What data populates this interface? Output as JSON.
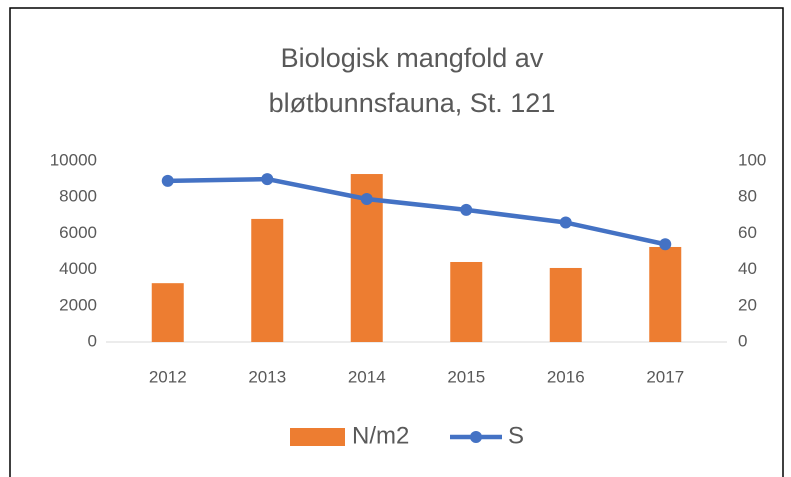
{
  "chart_data": {
    "type": "bar+line",
    "title": [
      "Biologisk mangfold av",
      "bløtbunnsfauna, St. 121"
    ],
    "categories": [
      "2012",
      "2013",
      "2014",
      "2015",
      "2016",
      "2017"
    ],
    "series": [
      {
        "name": "N/m2",
        "color": "#ED7D31",
        "type": "bar",
        "axis": "y",
        "values": [
          3250,
          6800,
          9280,
          4420,
          4090,
          5250
        ]
      },
      {
        "name": "S",
        "color": "#4472C4",
        "type": "line",
        "axis": "y2",
        "values": [
          89,
          90,
          79,
          73,
          66,
          54
        ]
      }
    ],
    "ylim": [
      0,
      10000
    ],
    "yticks": [
      0,
      2000,
      4000,
      6000,
      8000,
      10000
    ],
    "y2lim": [
      0,
      100
    ],
    "y2ticks": [
      0,
      20,
      40,
      60,
      80,
      100
    ],
    "grid": false,
    "legend": "bottom"
  }
}
